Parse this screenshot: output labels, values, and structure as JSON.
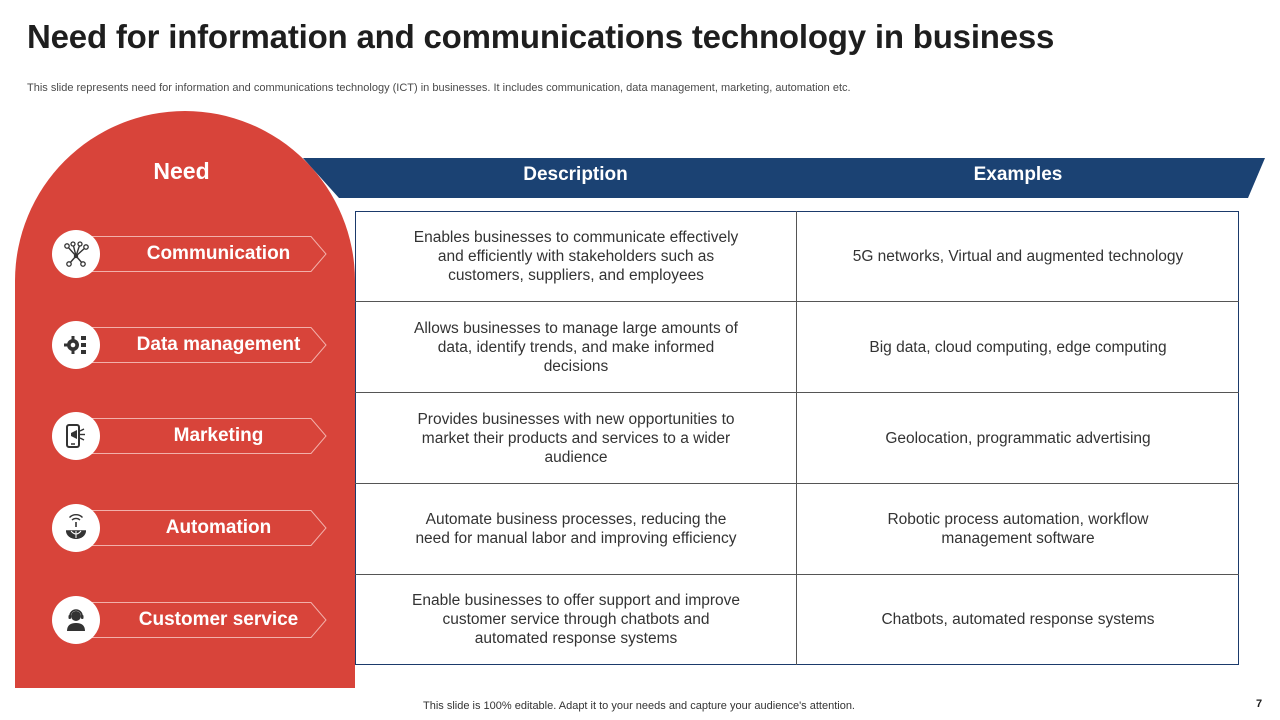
{
  "slide": {
    "title": "Need for information and communications technology in business",
    "subtitle": "This slide represents need for information and communications technology (ICT) in businesses. It includes communication, data management, marketing, automation etc.",
    "footer": "This slide is 100% editable. Adapt it to your needs and capture your audience's attention.",
    "page_number": "7"
  },
  "colors": {
    "accent_red": "#d8443a",
    "header_blue": "#1b4273",
    "text": "#333333"
  },
  "need": {
    "heading": "Need",
    "items": [
      {
        "label": "Communication",
        "icon": "network-icon"
      },
      {
        "label": "Data management",
        "icon": "gear-data-icon"
      },
      {
        "label": "Marketing",
        "icon": "mobile-megaphone-icon"
      },
      {
        "label": "Automation",
        "icon": "globe-signal-icon"
      },
      {
        "label": "Customer service",
        "icon": "support-agent-icon"
      }
    ]
  },
  "table": {
    "headers": {
      "description": "Description",
      "examples": "Examples"
    },
    "rows": [
      {
        "description": "Enables businesses to communicate effectively and efficiently with stakeholders such as customers, suppliers, and employees",
        "examples": "5G networks, Virtual and augmented technology"
      },
      {
        "description": "Allows businesses to manage large amounts of data, identify trends, and make informed decisions",
        "examples": "Big data, cloud computing, edge computing"
      },
      {
        "description": "Provides businesses with new opportunities to market their products and services to a wider audience",
        "examples": "Geolocation, programmatic advertising"
      },
      {
        "description": "Automate business processes, reducing the need for manual labor and improving efficiency",
        "examples": "Robotic process automation, workflow management software"
      },
      {
        "description": "Enable businesses to offer support and improve customer service through chatbots and automated response systems",
        "examples": "Chatbots, automated response systems"
      }
    ]
  }
}
